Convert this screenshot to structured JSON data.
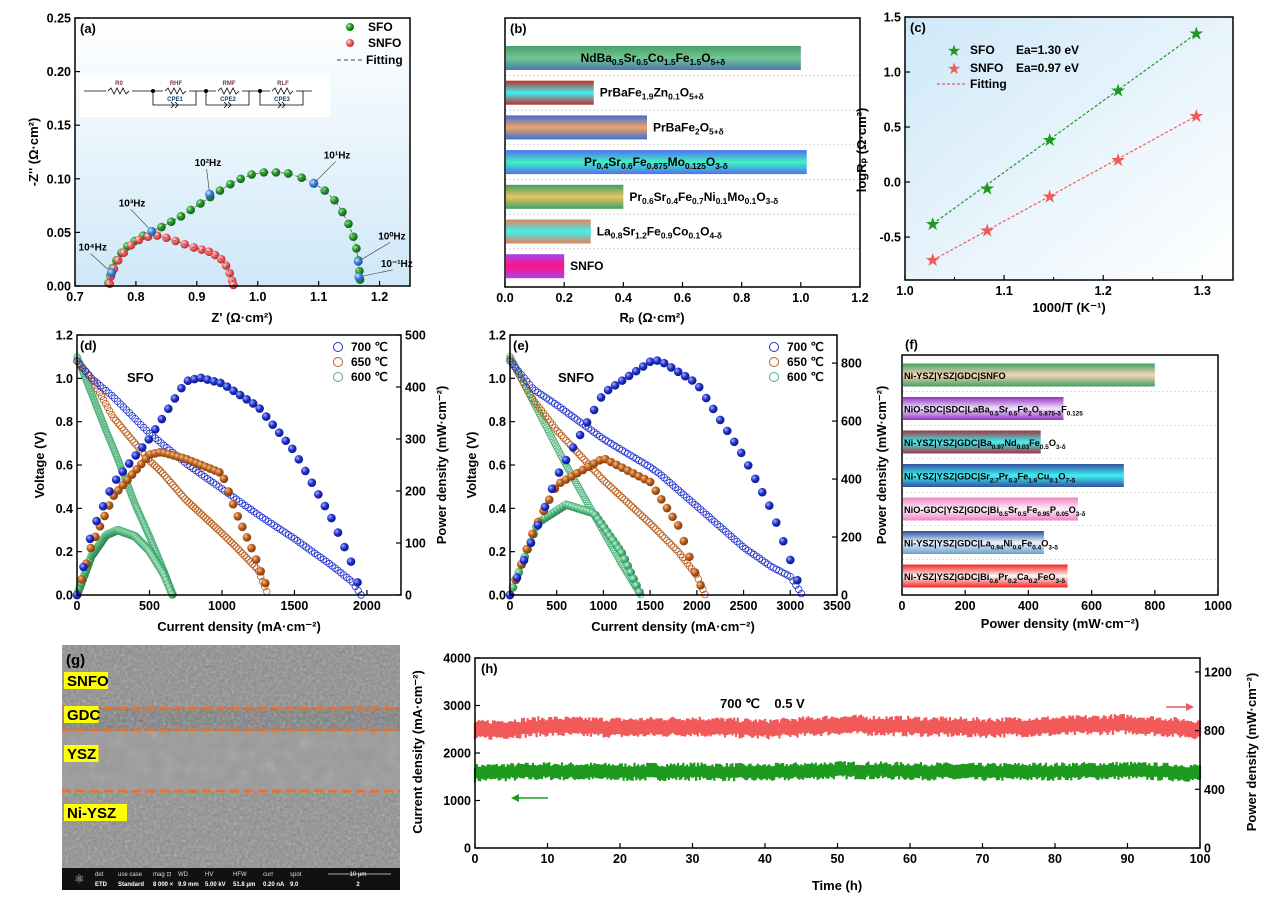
{
  "panel_labels": {
    "a": "(a)",
    "b": "(b)",
    "c": "(c)",
    "d": "(d)",
    "e": "(e)",
    "f": "(f)",
    "g": "(g)",
    "h": "(h)"
  },
  "chart_data": [
    {
      "id": "a",
      "type": "scatter",
      "xlabel": "Z' (Ω·cm²)",
      "ylabel": "-Z'' (Ω·cm²)",
      "xlim": [
        0.7,
        1.25
      ],
      "ylim": [
        0,
        0.25
      ],
      "xticks": [
        0.7,
        0.8,
        0.9,
        1.0,
        1.1,
        1.2
      ],
      "yticks": [
        0.0,
        0.05,
        0.1,
        0.15,
        0.2,
        0.25
      ],
      "legend_position": "top-right",
      "series": [
        {
          "name": "SFO",
          "color": "#1e9a1e",
          "x": [
            0.755,
            0.758,
            0.762,
            0.768,
            0.776,
            0.786,
            0.798,
            0.812,
            0.826,
            0.842,
            0.858,
            0.874,
            0.89,
            0.906,
            0.922,
            0.938,
            0.955,
            0.972,
            0.99,
            1.01,
            1.03,
            1.05,
            1.072,
            1.092,
            1.11,
            1.126,
            1.139,
            1.149,
            1.157,
            1.162,
            1.165,
            1.167,
            1.168
          ],
          "y": [
            0.003,
            0.01,
            0.017,
            0.024,
            0.031,
            0.037,
            0.042,
            0.047,
            0.051,
            0.055,
            0.06,
            0.065,
            0.071,
            0.077,
            0.083,
            0.089,
            0.095,
            0.1,
            0.104,
            0.106,
            0.106,
            0.105,
            0.101,
            0.096,
            0.089,
            0.08,
            0.069,
            0.058,
            0.046,
            0.035,
            0.024,
            0.014,
            0.006
          ]
        },
        {
          "name": "SNFO",
          "color": "#f25a5a",
          "x": [
            0.757,
            0.759,
            0.764,
            0.771,
            0.78,
            0.792,
            0.805,
            0.82,
            0.835,
            0.85,
            0.865,
            0.88,
            0.895,
            0.908,
            0.92,
            0.93,
            0.94,
            0.948,
            0.954,
            0.958,
            0.96
          ],
          "y": [
            0.002,
            0.009,
            0.016,
            0.024,
            0.031,
            0.038,
            0.043,
            0.046,
            0.047,
            0.045,
            0.042,
            0.039,
            0.036,
            0.034,
            0.032,
            0.029,
            0.025,
            0.019,
            0.012,
            0.005,
            0.001
          ]
        }
      ],
      "fitting": {
        "name": "Fitting",
        "color": "#808080"
      },
      "frequency_markers": [
        {
          "label": "10⁴Hz",
          "x": 0.76,
          "y": 0.0125
        },
        {
          "label": "10³Hz",
          "x": 0.826,
          "y": 0.051
        },
        {
          "label": "10²Hz",
          "x": 0.921,
          "y": 0.0857
        },
        {
          "label": "10¹Hz",
          "x": 1.092,
          "y": 0.0957
        },
        {
          "label": "10⁰Hz",
          "x": 1.165,
          "y": 0.023
        },
        {
          "label": "10⁻¹Hz",
          "x": 1.166,
          "y": 0.0085
        }
      ],
      "marker_color": "#3a7fd8",
      "circuit": {
        "R0": "R0",
        "R1": "RHF",
        "C1": "CPE1",
        "R2": "RMF",
        "C2": "CPE2",
        "R3": "RLF",
        "C3": "CPE3"
      }
    },
    {
      "id": "b",
      "type": "bar",
      "orientation": "horizontal",
      "xlabel": "Rₚ (Ω·cm²)",
      "xlim": [
        0,
        1.2
      ],
      "xticks": [
        0.0,
        0.2,
        0.4,
        0.6,
        0.8,
        1.0,
        1.2
      ],
      "categories": [
        "NdBa0.5Sr0.5Co1.5Fe1.5O5+δ",
        "PrBaFe1.9Zn0.1O5+δ",
        "PrBaFe2O5+δ",
        "Pr0.4Sr0.6Fe0.875Mo0.125O3-δ",
        "Pr0.6Sr0.4Fe0.7Ni0.1Mo0.1O3-δ",
        "La0.8Sr1.2Fe0.9Co0.1O4-δ",
        "SNFO"
      ],
      "values": [
        1.0,
        0.3,
        0.48,
        1.02,
        0.4,
        0.29,
        0.2
      ],
      "colors": [
        [
          "#4a9e6c",
          "#72c890",
          "#4a78b2"
        ],
        [
          "#c42a2a",
          "#3ef2f2",
          "#c42a2a"
        ],
        [
          "#3a6fd2",
          "#f2a464",
          "#3a6fd2"
        ],
        [
          "#5070f2",
          "#3ef2c2",
          "#5070f2"
        ],
        [
          "#40a062",
          "#e9c462",
          "#40a062"
        ],
        [
          "#e4805e",
          "#3ef2f2",
          "#e4805e"
        ],
        [
          "#a844f2",
          "#ff1282",
          "#a844f2"
        ]
      ]
    },
    {
      "id": "c",
      "type": "scatter",
      "xlabel": "1000/T (K⁻¹)",
      "ylabel": "logRₚ (Ω·cm²)",
      "xlim": [
        1.0,
        1.331
      ],
      "ylim": [
        -0.89,
        1.5
      ],
      "xticks": [
        1.0,
        1.1,
        1.2,
        1.3
      ],
      "yticks": [
        -0.5,
        0.0,
        0.5,
        1.0,
        1.5
      ],
      "legend_position": "top-left",
      "series": [
        {
          "name": "SFO",
          "annotation": "Ea=1.30 eV",
          "color": "#1e9a1e",
          "x": [
            1.028,
            1.083,
            1.146,
            1.215,
            1.294
          ],
          "y": [
            -0.38,
            -0.06,
            0.38,
            0.83,
            1.35
          ]
        },
        {
          "name": "SNFO",
          "annotation": "Ea=0.97 eV",
          "color": "#f25a5a",
          "x": [
            1.028,
            1.083,
            1.146,
            1.215,
            1.294
          ],
          "y": [
            -0.71,
            -0.44,
            -0.13,
            0.2,
            0.6
          ]
        }
      ],
      "fit_label": "Fitting"
    },
    {
      "id": "d",
      "type": "scatter",
      "annotation": "SFO",
      "xlabel": "Current density (mA·cm⁻²)",
      "ylabel": "Voltage (V)",
      "y2label": "Power density (mW·cm⁻²)",
      "xlim": [
        0,
        2235
      ],
      "ylim": [
        0,
        1.2
      ],
      "y2lim": [
        0,
        500
      ],
      "xticks": [
        0,
        500,
        1000,
        1500,
        2000
      ],
      "yticks": [
        0.0,
        0.2,
        0.4,
        0.6,
        0.8,
        1.0,
        1.2
      ],
      "y2ticks": [
        0,
        100,
        200,
        300,
        400,
        500
      ],
      "legend_position": "top-right",
      "series": [
        {
          "name": "700 ℃",
          "color": "#2030d0",
          "current": [
            0,
            100,
            250,
            500,
            750,
            850,
            1000,
            1250,
            1500,
            1750,
            1900,
            1960
          ],
          "voltage": [
            1.08,
            1.0,
            0.915,
            0.746,
            0.608,
            0.56,
            0.49,
            0.37,
            0.26,
            0.14,
            0.06,
            0
          ],
          "power": [
            0,
            120,
            215,
            301,
            411,
            418,
            407,
            362,
            276,
            151,
            58,
            0
          ]
        },
        {
          "name": "650 ℃",
          "color": "#b85c1a",
          "current": [
            0,
            100,
            250,
            500,
            580,
            750,
            1000,
            1100,
            1200,
            1250,
            1300,
            1320
          ],
          "voltage": [
            1.08,
            1.0,
            0.82,
            0.62,
            0.57,
            0.44,
            0.285,
            0.22,
            0.15,
            0.115,
            0.03,
            0
          ],
          "power": [
            0,
            95,
            190,
            270,
            275,
            262,
            234,
            157,
            93,
            58,
            22,
            0
          ]
        },
        {
          "name": "600 ℃",
          "color": "#4db47a",
          "current": [
            0,
            100,
            200,
            280,
            400,
            500,
            600,
            660
          ],
          "voltage": [
            1.1,
            0.93,
            0.76,
            0.63,
            0.42,
            0.27,
            0.11,
            0
          ],
          "power": [
            0,
            75,
            115,
            125,
            113,
            85,
            40,
            0
          ]
        }
      ]
    },
    {
      "id": "e",
      "type": "scatter",
      "annotation": "SNFO",
      "xlabel": "Current density (mA·cm⁻²)",
      "ylabel": "Voltage (V)",
      "y2label": "Power density (mW·cm⁻²)",
      "xlim": [
        0,
        3500
      ],
      "ylim": [
        0,
        1.2
      ],
      "y2lim": [
        0,
        897
      ],
      "xticks": [
        0,
        500,
        1000,
        1500,
        2000,
        2500,
        3000,
        3500
      ],
      "yticks": [
        0.0,
        0.2,
        0.4,
        0.6,
        0.8,
        1.0,
        1.2
      ],
      "y2ticks": [
        0,
        200,
        400,
        600,
        800
      ],
      "legend_position": "top-right",
      "series": [
        {
          "name": "700 ℃",
          "color": "#2030d0",
          "current": [
            0,
            250,
            500,
            1000,
            1500,
            1600,
            2000,
            2500,
            2800,
            3000,
            3130
          ],
          "voltage": [
            1.08,
            0.95,
            0.877,
            0.72,
            0.59,
            0.56,
            0.41,
            0.22,
            0.13,
            0.085,
            0
          ],
          "power": [
            0,
            200,
            408,
            696,
            805,
            810,
            730,
            478,
            293,
            121,
            0
          ]
        },
        {
          "name": "650 ℃",
          "color": "#b85c1a",
          "current": [
            0,
            250,
            500,
            1000,
            1500,
            1800,
            2000,
            2090
          ],
          "voltage": [
            1.09,
            0.9,
            0.76,
            0.53,
            0.33,
            0.2,
            0.09,
            0
          ],
          "power": [
            0,
            220,
            380,
            472,
            390,
            240,
            60,
            0
          ]
        },
        {
          "name": "600 ℃",
          "color": "#4db47a",
          "current": [
            0,
            300,
            600,
            900,
            1200,
            1400
          ],
          "voltage": [
            1.1,
            0.85,
            0.6,
            0.37,
            0.14,
            0
          ],
          "power": [
            0,
            250,
            312,
            282,
            144,
            0
          ]
        }
      ]
    },
    {
      "id": "f",
      "type": "bar",
      "orientation": "horizontal",
      "xlabel": "Power density (mW·cm⁻²)",
      "xlim": [
        0,
        1000
      ],
      "xticks": [
        0,
        200,
        400,
        600,
        800,
        1000
      ],
      "categories": [
        "Ni-YSZ|YSZ|GDC|SNFO",
        "NiO-SDC|SDC|LaBa0.5Sr0.5Fe2O5.875-δF0.125",
        "Ni-YSZ|YSZ|GDC|Ba0.97Nd0.03Fe0.5O3-δ",
        "Ni-YSZ|YSZ|GDC|Sr2.7Pr0.3Fe1.9Cu0.1O7-δ",
        "NiO-GDC|YSZ|GDC|Bi0.5Sr0.5Fe0.95P0.05O3-δ",
        "Ni-YSZ|YSZ|GDC|La0.94Ni0.6Fe0.4O3-δ",
        "Ni-YSZ|YSZ|GDC|Bi0.6Pr0.2Ca0.2FeO3-δ"
      ],
      "values": [
        800,
        511,
        439,
        702,
        557,
        449,
        524
      ],
      "colors": [
        [
          "#40a062",
          "#f9d4b4",
          "#40a062"
        ],
        [
          "#9232c4",
          "#f2e4fa",
          "#9232c4"
        ],
        [
          "#a23242",
          "#3ef2f2",
          "#a23242"
        ],
        [
          "#3252a2",
          "#3ef2f2",
          "#3252a2"
        ],
        [
          "#f282c2",
          "#faf2fa",
          "#f282c2"
        ],
        [
          "#2252a2",
          "#f2f2fa",
          "#62a2d2"
        ],
        [
          "#f22222",
          "#fafafa",
          "#f22222"
        ]
      ]
    },
    {
      "id": "h",
      "type": "line",
      "annotation": "700 ℃    0.5 V",
      "xlabel": "Time (h)",
      "ylabel": "Current density (mA·cm⁻²)",
      "y2label": "Power density (mW·cm⁻²)",
      "xlim": [
        0,
        100
      ],
      "ylim": [
        0,
        4000
      ],
      "y2lim": [
        0,
        1295
      ],
      "xticks": [
        0,
        10,
        20,
        30,
        40,
        50,
        60,
        70,
        80,
        90,
        100
      ],
      "yticks": [
        0,
        1000,
        2000,
        3000,
        4000
      ],
      "y2ticks": [
        0,
        400,
        800,
        1200
      ],
      "time": [
        0,
        10,
        20,
        30,
        40,
        50,
        60,
        70,
        80,
        90,
        100
      ],
      "series": [
        {
          "name": "Current density",
          "axis": "left",
          "color": "#1e9a1e",
          "values": [
            1580,
            1620,
            1600,
            1610,
            1590,
            1640,
            1620,
            1600,
            1610,
            1630,
            1580
          ]
        },
        {
          "name": "Power density",
          "axis": "right",
          "color": "#f25a5a",
          "values": [
            800,
            830,
            820,
            830,
            810,
            840,
            830,
            820,
            830,
            845,
            810
          ]
        }
      ]
    }
  ],
  "sem": {
    "layers": [
      "SNFO",
      "GDC",
      "YSZ",
      "Ni-YSZ"
    ],
    "info_headers": [
      "det",
      "use case",
      "mag ⊡",
      "WD",
      "HV",
      "HFW",
      "curr",
      "spot"
    ],
    "info_values": [
      "ETD",
      "Standard",
      "8 000 ×",
      "9.9 mm",
      "5.00 kV",
      "51.8 μm",
      "0.20 nA",
      "9.0"
    ],
    "scale_bar": "10 μm",
    "scale_index": "2"
  }
}
